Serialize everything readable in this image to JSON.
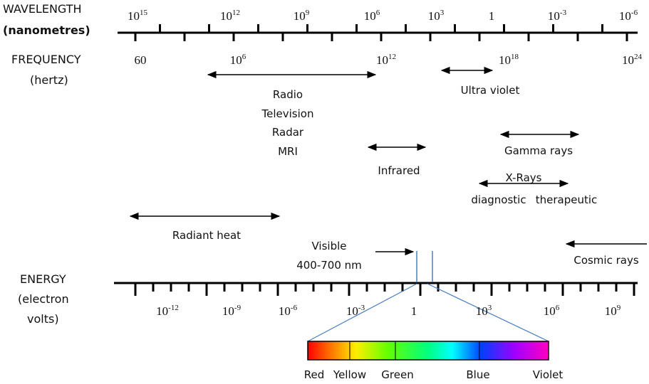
{
  "labels": {
    "wavelength": "WAVELENGTH",
    "wavelength_unit": "(nanometres)",
    "frequency": "FREQUENCY",
    "frequency_unit": "(hertz)",
    "energy": "ENERGY",
    "energy_unit_1": "(electron",
    "energy_unit_2": "volts)"
  },
  "wavelength_ticks": [
    {
      "base": "10",
      "exp": "15"
    },
    {
      "base": "10",
      "exp": "12"
    },
    {
      "base": "10",
      "exp": "9"
    },
    {
      "base": "10",
      "exp": "6"
    },
    {
      "base": "10",
      "exp": "3"
    },
    {
      "base": "1"
    },
    {
      "base": "10",
      "exp": "-3"
    },
    {
      "base": "10",
      "exp": "-6"
    }
  ],
  "frequency_ticks": [
    {
      "base": "60"
    },
    {
      "base": "10",
      "exp": "6"
    },
    {
      "base": "10",
      "exp": "12"
    },
    {
      "base": "10",
      "exp": "18"
    },
    {
      "base": "10",
      "exp": "24"
    }
  ],
  "energy_ticks": [
    {
      "base": "10",
      "exp": "-12"
    },
    {
      "base": "10",
      "exp": "-9"
    },
    {
      "base": "10",
      "exp": "-6"
    },
    {
      "base": "10",
      "exp": "-3"
    },
    {
      "base": "1"
    },
    {
      "base": "10",
      "exp": "3"
    },
    {
      "base": "10",
      "exp": "6"
    },
    {
      "base": "10",
      "exp": "9"
    }
  ],
  "bands": {
    "radio": [
      "Radio",
      "Television",
      "Radar",
      "MRI"
    ],
    "ultra_violet": "Ultra violet",
    "infrared": "Infrared",
    "gamma_rays": "Gamma rays",
    "x_rays": "X-Rays",
    "x_rays_diagnostic": "diagnostic",
    "x_rays_therapeutic": "therapeutic",
    "radiant_heat": "Radiant heat",
    "visible": "Visible",
    "visible_range": "400-700 nm",
    "cosmic_rays": "Cosmic rays"
  },
  "spectrum_colors": [
    "Red",
    "Yellow",
    "Green",
    "Blue",
    "Violet"
  ]
}
